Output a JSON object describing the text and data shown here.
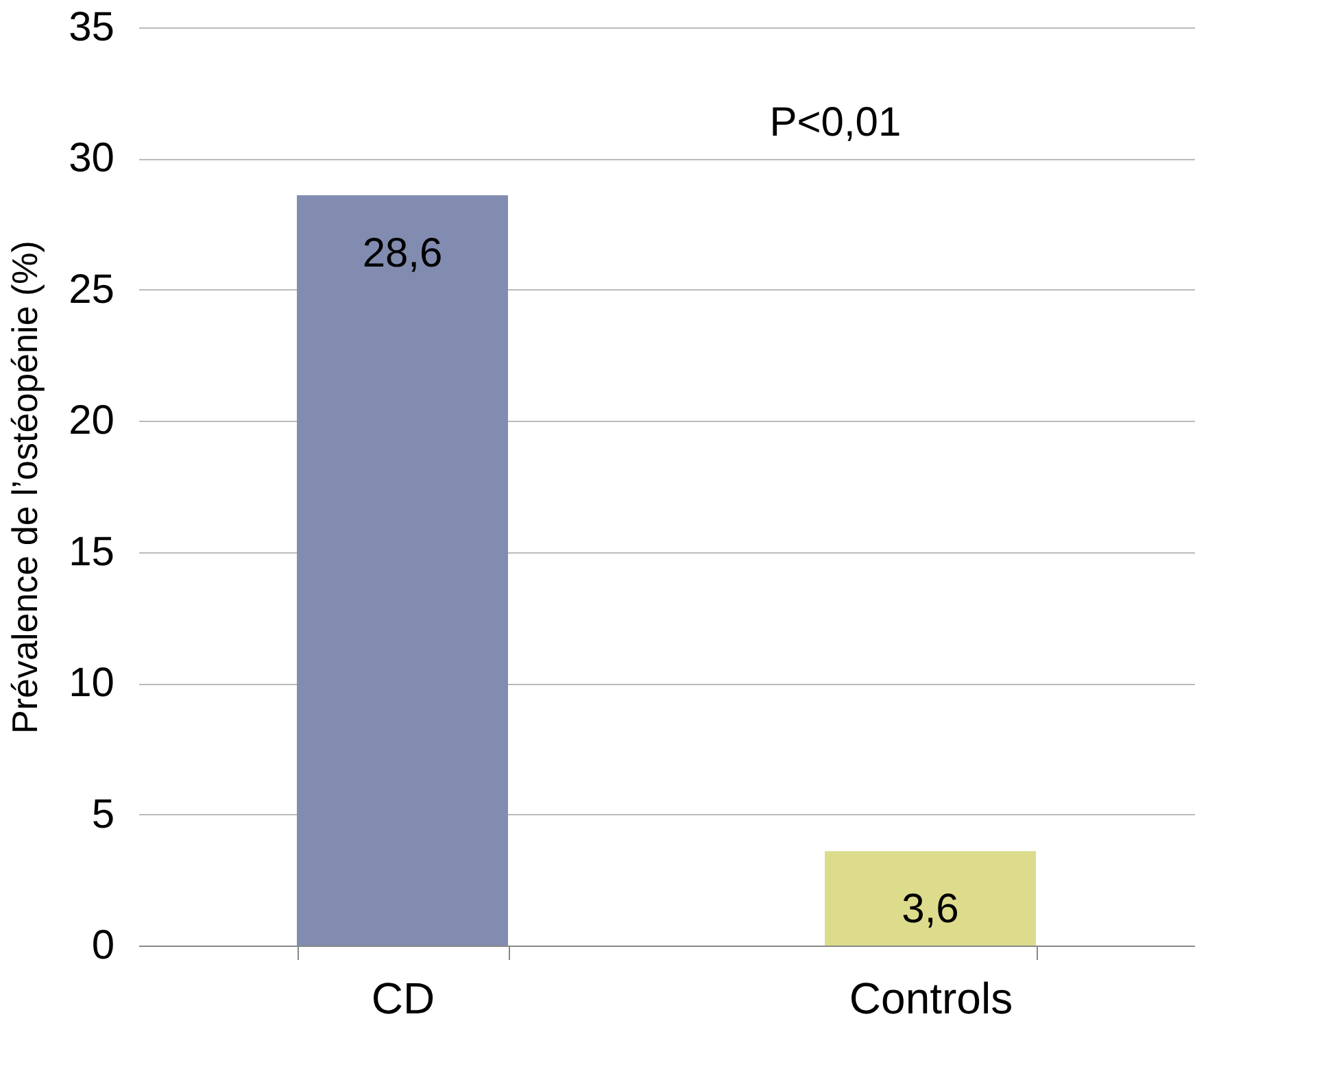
{
  "chart_data": {
    "type": "bar",
    "ylabel": "Prévalence de l’ostéopénie (%)",
    "categories": [
      "CD",
      "Controls"
    ],
    "values": [
      28.6,
      3.6
    ],
    "colors": [
      "#828cb0",
      "#dcdc8c"
    ],
    "value_labels": [
      "28,6",
      "3,6"
    ],
    "ylim": [
      0,
      35
    ],
    "yticks": [
      0,
      5,
      10,
      15,
      20,
      25,
      30,
      35
    ],
    "grid": "y",
    "annotations": [
      "P<0,01"
    ]
  }
}
